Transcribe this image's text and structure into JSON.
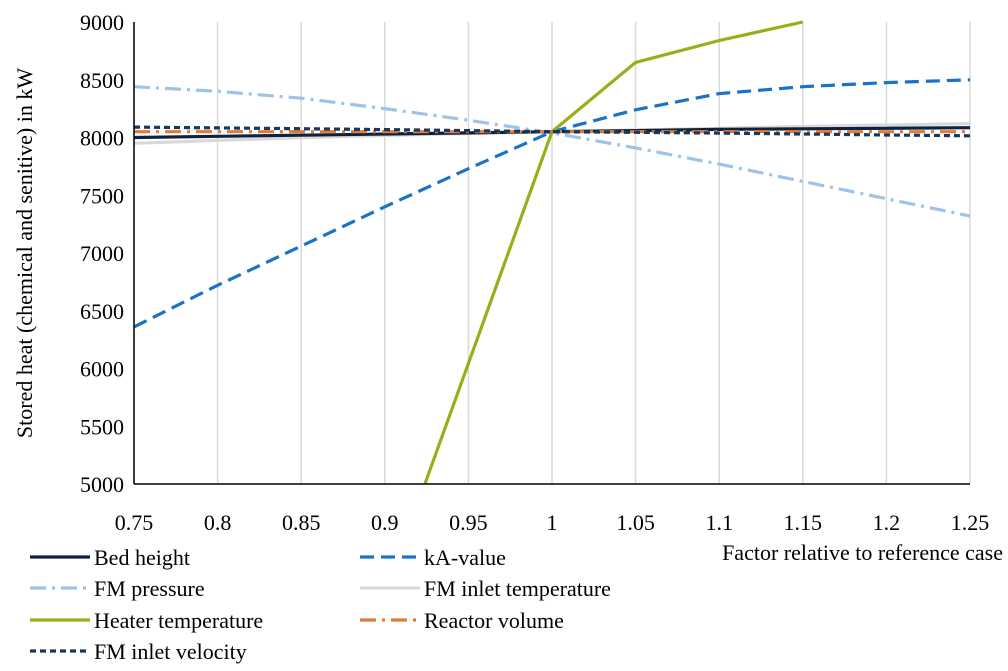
{
  "chart_data": {
    "type": "line",
    "title": "",
    "xlabel": "Factor relative to reference case",
    "ylabel": "Stored heat (chemical and senitive) in kW",
    "xlim": [
      0.75,
      1.25
    ],
    "ylim": [
      5000,
      9000
    ],
    "x_ticks": [
      "0.75",
      "0.8",
      "0.85",
      "0.9",
      "0.95",
      "1",
      "1.05",
      "1.1",
      "1.15",
      "1.2",
      "1.25"
    ],
    "y_ticks": [
      "5000",
      "5500",
      "6000",
      "6500",
      "7000",
      "7500",
      "8000",
      "8500",
      "9000"
    ],
    "grid": "vertical",
    "legend_position": "bottom",
    "series": [
      {
        "name": "Bed height",
        "color": "#0d2240",
        "dash": "solid",
        "points": [
          [
            0.75,
            8000
          ],
          [
            0.8,
            8010
          ],
          [
            0.85,
            8020
          ],
          [
            0.9,
            8030
          ],
          [
            0.95,
            8040
          ],
          [
            1.0,
            8050
          ],
          [
            1.05,
            8060
          ],
          [
            1.1,
            8070
          ],
          [
            1.15,
            8075
          ],
          [
            1.2,
            8080
          ],
          [
            1.25,
            8085
          ]
        ]
      },
      {
        "name": "kA-value",
        "color": "#1a73c5",
        "dash": "dash",
        "points": [
          [
            0.75,
            6360
          ],
          [
            0.8,
            6720
          ],
          [
            0.85,
            7060
          ],
          [
            0.9,
            7400
          ],
          [
            0.95,
            7730
          ],
          [
            1.0,
            8050
          ],
          [
            1.05,
            8240
          ],
          [
            1.1,
            8380
          ],
          [
            1.15,
            8440
          ],
          [
            1.2,
            8475
          ],
          [
            1.25,
            8500
          ]
        ]
      },
      {
        "name": "FM pressure",
        "color": "#9ec3e6",
        "dash": "dashdot",
        "points": [
          [
            0.75,
            8440
          ],
          [
            0.8,
            8400
          ],
          [
            0.85,
            8340
          ],
          [
            0.9,
            8250
          ],
          [
            0.95,
            8150
          ],
          [
            1.0,
            8040
          ],
          [
            1.05,
            7910
          ],
          [
            1.1,
            7770
          ],
          [
            1.15,
            7620
          ],
          [
            1.2,
            7470
          ],
          [
            1.25,
            7320
          ]
        ]
      },
      {
        "name": "FM inlet temperature",
        "color": "#d9d9d9",
        "dash": "solid",
        "points": [
          [
            0.75,
            7950
          ],
          [
            0.8,
            7975
          ],
          [
            0.85,
            7998
          ],
          [
            0.9,
            8018
          ],
          [
            0.95,
            8035
          ],
          [
            1.0,
            8050
          ],
          [
            1.05,
            8065
          ],
          [
            1.1,
            8080
          ],
          [
            1.15,
            8095
          ],
          [
            1.2,
            8108
          ],
          [
            1.25,
            8120
          ]
        ]
      },
      {
        "name": "Heater temperature",
        "color": "#9aae1a",
        "dash": "solid",
        "points": [
          [
            0.924,
            5000
          ],
          [
            1.0,
            8050
          ],
          [
            1.05,
            8650
          ],
          [
            1.1,
            8840
          ],
          [
            1.15,
            9000
          ]
        ]
      },
      {
        "name": "Reactor volume",
        "color": "#e07b39",
        "dash": "dashdot",
        "points": [
          [
            0.75,
            8050
          ],
          [
            0.8,
            8050
          ],
          [
            0.85,
            8050
          ],
          [
            0.9,
            8050
          ],
          [
            0.95,
            8050
          ],
          [
            1.0,
            8050
          ],
          [
            1.05,
            8050
          ],
          [
            1.1,
            8050
          ],
          [
            1.15,
            8050
          ],
          [
            1.2,
            8050
          ],
          [
            1.25,
            8050
          ]
        ]
      },
      {
        "name": "FM inlet velocity",
        "color": "#17375e",
        "dash": "dot",
        "points": [
          [
            0.75,
            8090
          ],
          [
            0.8,
            8083
          ],
          [
            0.85,
            8076
          ],
          [
            0.9,
            8068
          ],
          [
            0.95,
            8060
          ],
          [
            1.0,
            8050
          ],
          [
            1.05,
            8045
          ],
          [
            1.1,
            8038
          ],
          [
            1.15,
            8030
          ],
          [
            1.2,
            8022
          ],
          [
            1.25,
            8015
          ]
        ]
      }
    ]
  }
}
